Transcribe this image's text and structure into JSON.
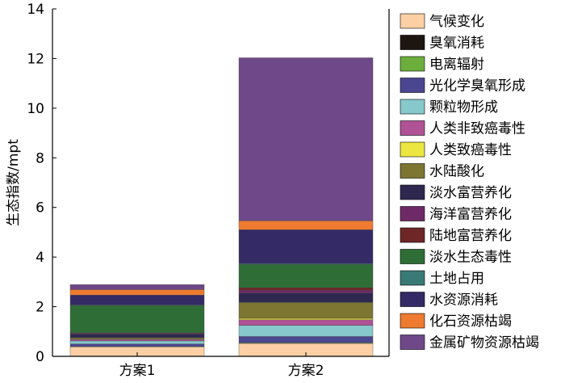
{
  "chart_data": {
    "type": "bar",
    "stacked": true,
    "categories": [
      "方案1",
      "方案2"
    ],
    "ylabel": "生态指数/mpt",
    "ylim": [
      0,
      14
    ],
    "yticks": [
      0,
      2,
      4,
      6,
      8,
      10,
      12,
      14
    ],
    "legend_position": "right",
    "series": [
      {
        "name": "气候变化",
        "color": "#fcd0a4",
        "values": [
          0.38,
          0.52
        ]
      },
      {
        "name": "臭氧消耗",
        "color": "#1c1510",
        "values": [
          0.0,
          0.0
        ]
      },
      {
        "name": "电离辐射",
        "color": "#6cae3c",
        "values": [
          0.02,
          0.03
        ]
      },
      {
        "name": "光化学臭氧形成",
        "color": "#4b4690",
        "values": [
          0.1,
          0.25
        ]
      },
      {
        "name": "颗粒物形成",
        "color": "#86c8cc",
        "values": [
          0.12,
          0.45
        ]
      },
      {
        "name": "人类非致癌毒性",
        "color": "#b05296",
        "values": [
          0.06,
          0.22
        ]
      },
      {
        "name": "人类致癌毒性",
        "color": "#ece740",
        "values": [
          0.02,
          0.06
        ]
      },
      {
        "name": "水陆酸化",
        "color": "#7c7632",
        "values": [
          0.05,
          0.64
        ]
      },
      {
        "name": "淡水富营养化",
        "color": "#2e2850",
        "values": [
          0.15,
          0.38
        ]
      },
      {
        "name": "海洋富营养化",
        "color": "#6e2a66",
        "values": [
          0.03,
          0.12
        ]
      },
      {
        "name": "陆地富营养化",
        "color": "#6e2626",
        "values": [
          0.02,
          0.1
        ]
      },
      {
        "name": "淡水生态毒性",
        "color": "#2e6e36",
        "values": [
          1.1,
          0.93
        ]
      },
      {
        "name": "土地占用",
        "color": "#3a7a76",
        "values": [
          0.02,
          0.04
        ]
      },
      {
        "name": "水资源消耗",
        "color": "#342a66",
        "values": [
          0.4,
          1.36
        ]
      },
      {
        "name": "化石资源枯竭",
        "color": "#ee7b30",
        "values": [
          0.22,
          0.36
        ]
      },
      {
        "name": "金属矿物资源枯竭",
        "color": "#6e4888",
        "values": [
          0.2,
          6.57
        ]
      }
    ]
  }
}
